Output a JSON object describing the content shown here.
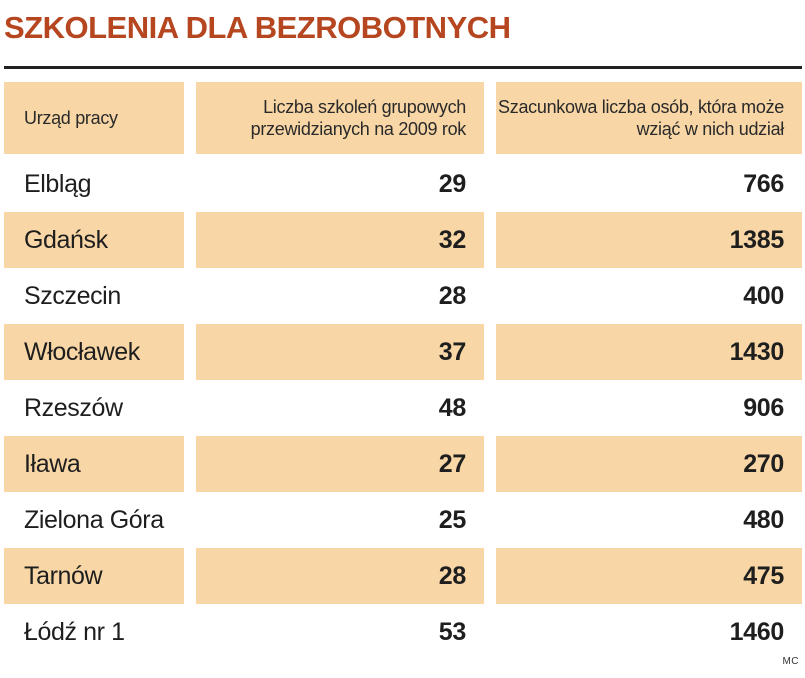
{
  "title": "SZKOLENIA DLA BEZROBOTNYCH",
  "source": "MC",
  "colors": {
    "title": "#b5461f",
    "band": "#f8d6a5",
    "rule": "#222222"
  },
  "chart_data": {
    "type": "table",
    "title": "SZKOLENIA DLA BEZROBOTNYCH",
    "columns": [
      "Urząd pracy",
      "Liczba szkoleń grupowych przewidzianych na 2009 rok",
      "Szacunkowa liczba osób, która może wziąć w nich udział"
    ],
    "rows": [
      [
        "Elbląg",
        "29",
        "766"
      ],
      [
        "Gdańsk",
        "32",
        "1385"
      ],
      [
        "Szczecin",
        "28",
        "400"
      ],
      [
        "Włocławek",
        "37",
        "1430"
      ],
      [
        "Rzeszów",
        "48",
        "906"
      ],
      [
        "Iława",
        "27",
        "270"
      ],
      [
        "Zielona Góra",
        "25",
        "480"
      ],
      [
        "Tarnów",
        "28",
        "475"
      ],
      [
        "Łódź nr 1",
        "53",
        "1460"
      ]
    ]
  }
}
